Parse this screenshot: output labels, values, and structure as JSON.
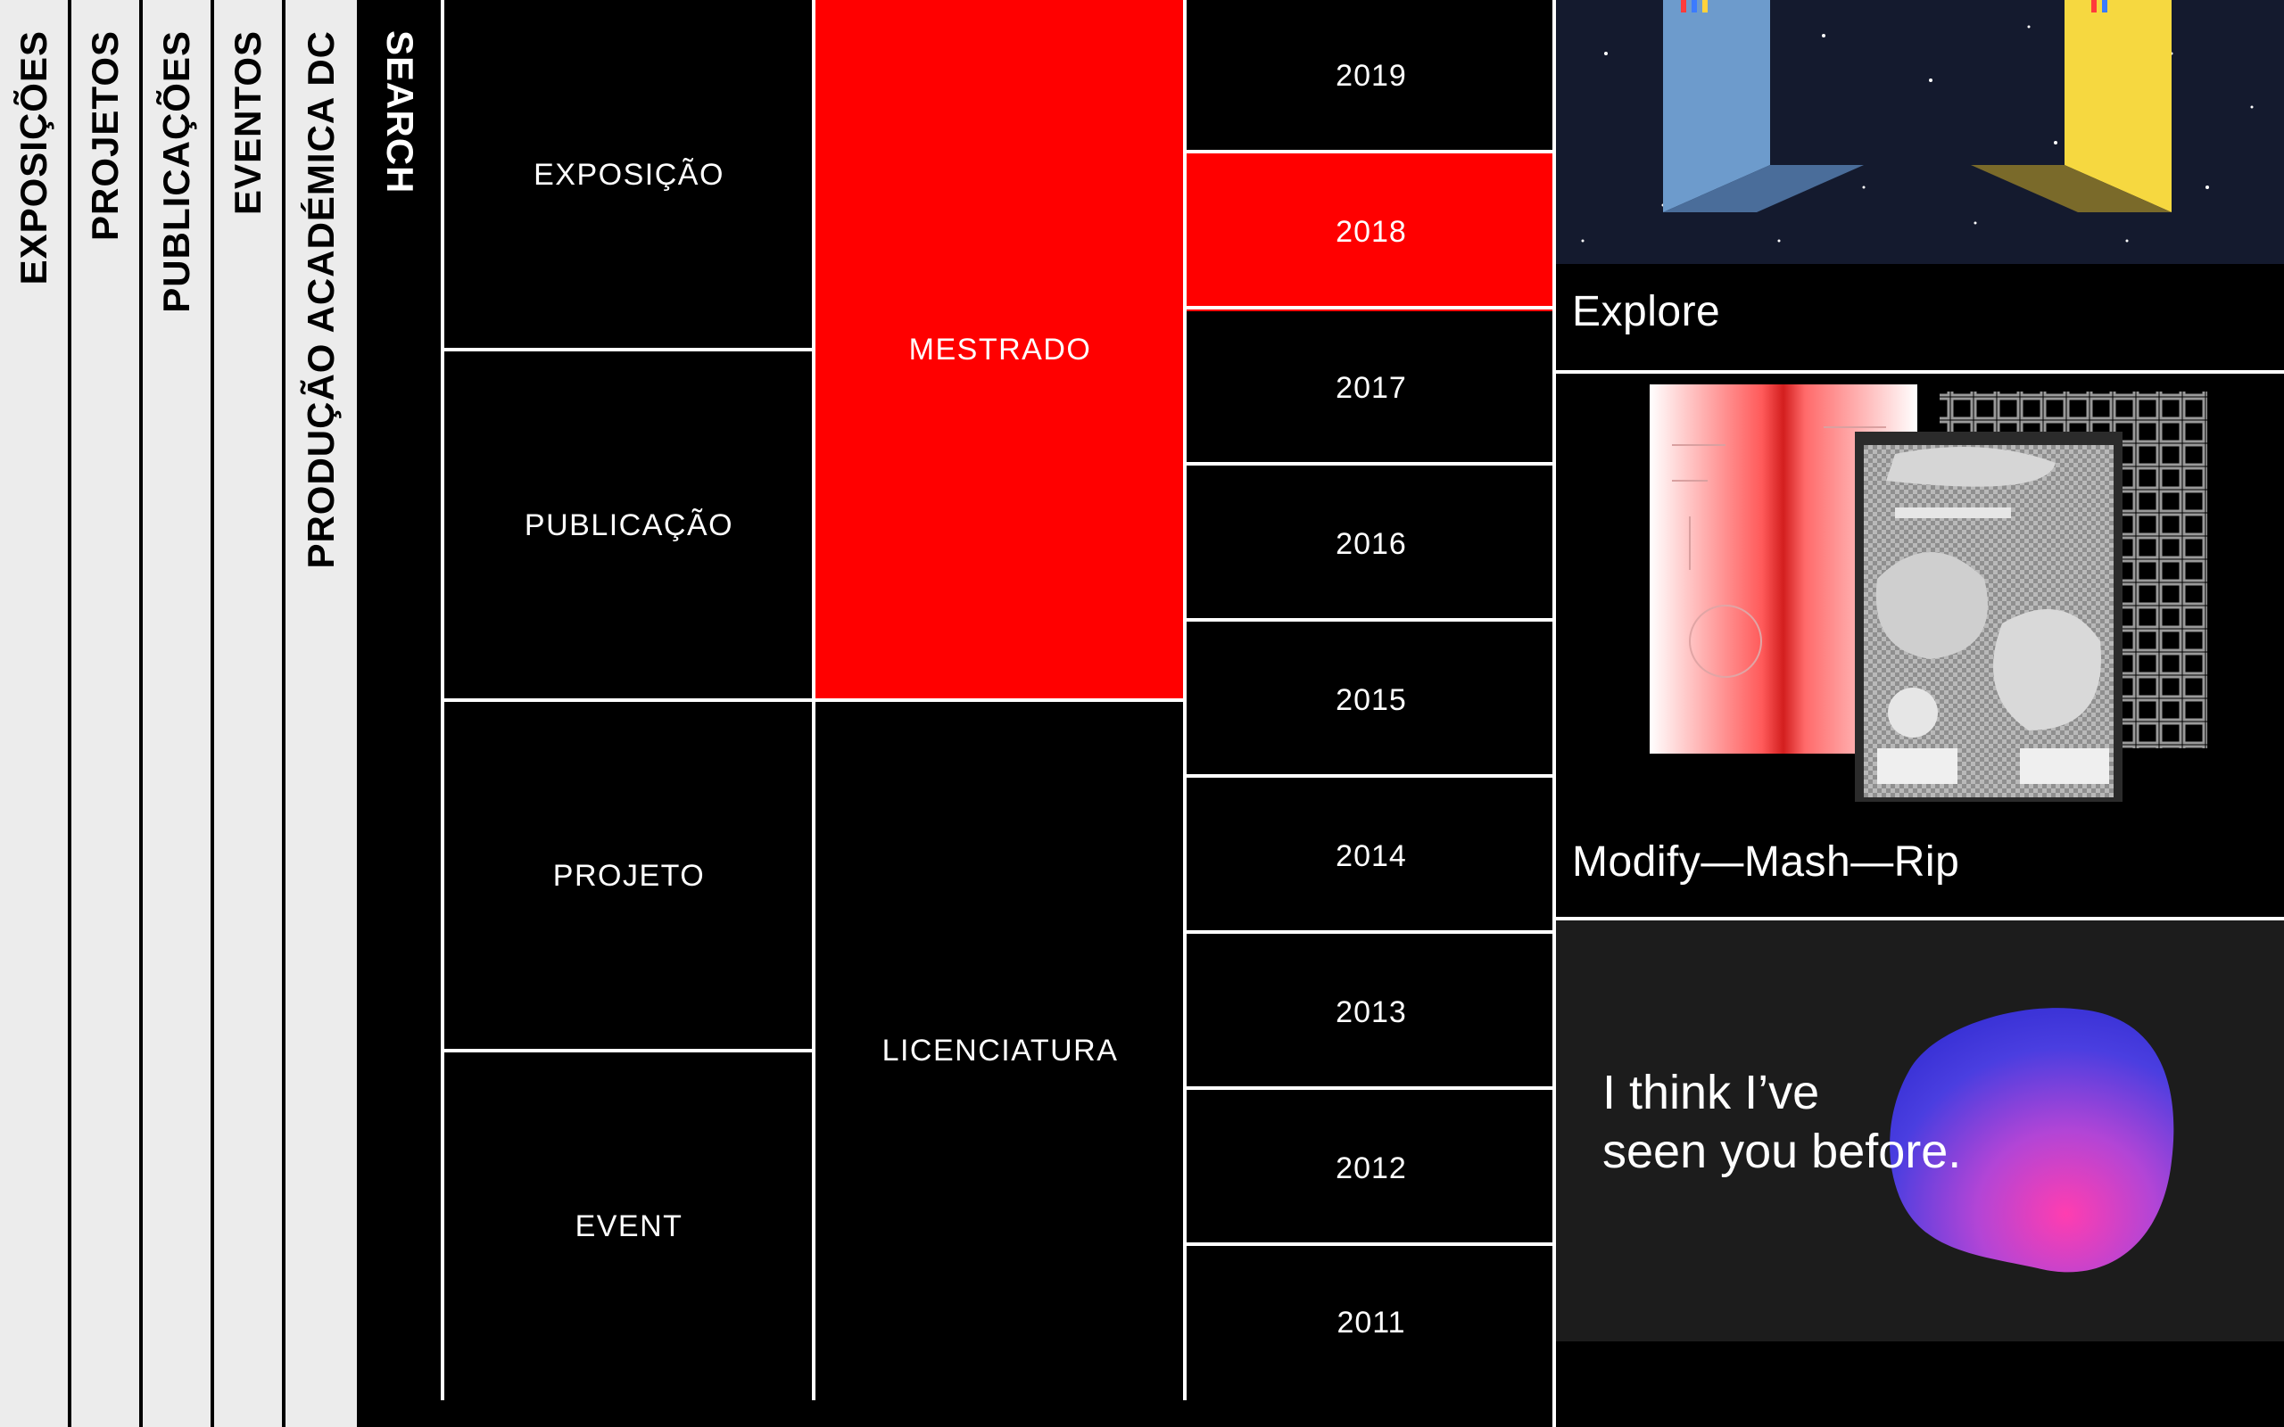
{
  "nav": {
    "tabs": [
      {
        "label": "EXPOSIÇÕES"
      },
      {
        "label": "PROJETOS"
      },
      {
        "label": "PUBLICAÇÕES"
      },
      {
        "label": "EVENTOS"
      },
      {
        "label": "PRODUÇÃO ACADÉMICA DC"
      }
    ],
    "search_label": "SEARCH"
  },
  "filters": {
    "types": [
      {
        "label": "EXPOSIÇÃO"
      },
      {
        "label": "PUBLICAÇÃO"
      },
      {
        "label": "PROJETO"
      },
      {
        "label": "EVENT"
      }
    ],
    "degrees": [
      {
        "label": "MESTRADO",
        "active": true
      },
      {
        "label": "LICENCIATURA",
        "active": false
      }
    ],
    "years": [
      {
        "label": "2019",
        "active": false
      },
      {
        "label": "2018",
        "active": true
      },
      {
        "label": "2017",
        "active": false
      },
      {
        "label": "2016",
        "active": false
      },
      {
        "label": "2015",
        "active": false
      },
      {
        "label": "2014",
        "active": false
      },
      {
        "label": "2013",
        "active": false
      },
      {
        "label": "2012",
        "active": false
      },
      {
        "label": "2011",
        "active": false
      }
    ]
  },
  "projects": [
    {
      "title": "Explore"
    },
    {
      "title": "Modify—Mash—Rip"
    },
    {
      "caption_line1": "I think I’ve",
      "caption_line2": "seen you before."
    }
  ],
  "colors": {
    "accent": "#ff0000",
    "background": "#000000",
    "nav_bg": "#ececec",
    "card3_bg": "#1c1c1c"
  }
}
